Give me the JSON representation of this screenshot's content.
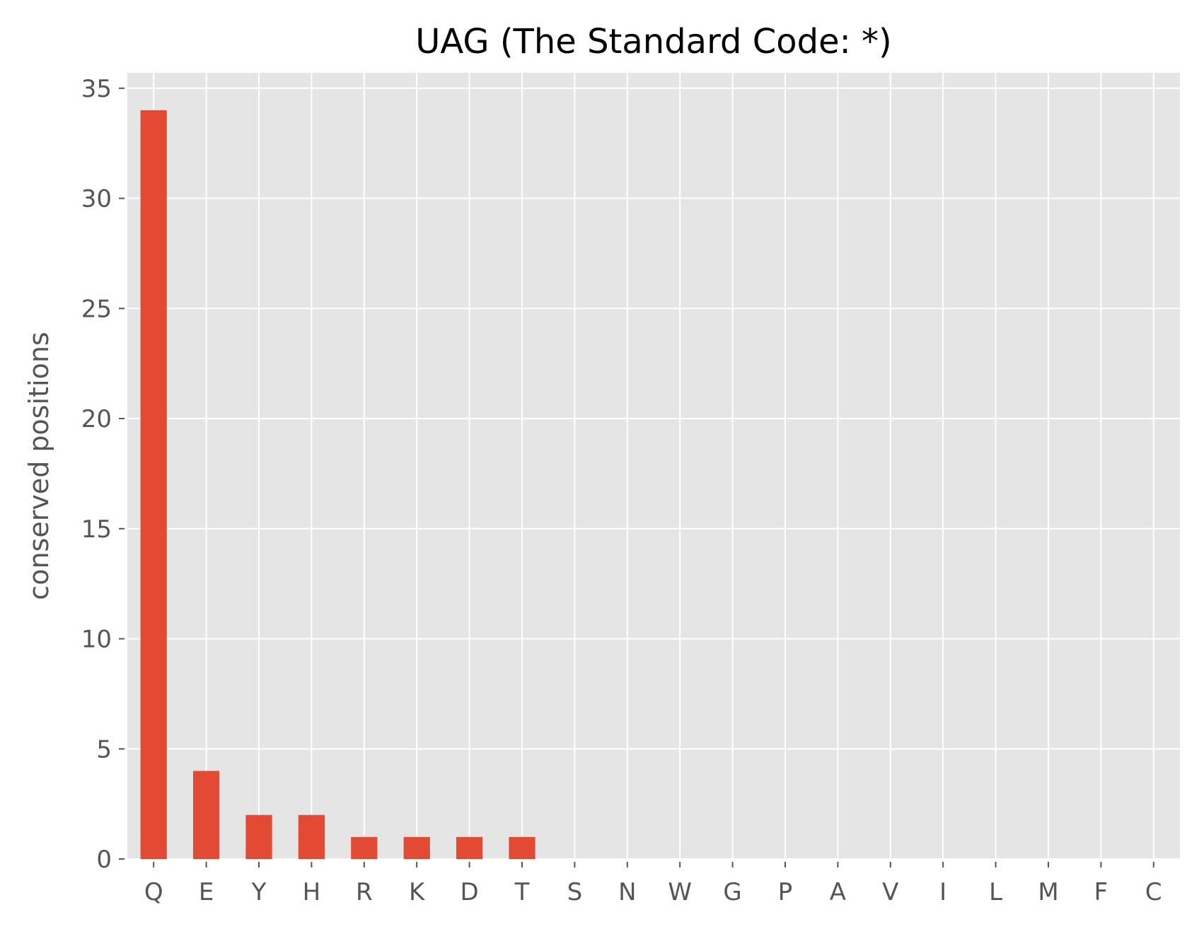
{
  "chart_data": {
    "type": "bar",
    "title": "UAG (The Standard Code: *)",
    "xlabel": "",
    "ylabel": "conserved positions",
    "categories": [
      "Q",
      "E",
      "Y",
      "H",
      "R",
      "K",
      "D",
      "T",
      "S",
      "N",
      "W",
      "G",
      "P",
      "A",
      "V",
      "I",
      "L",
      "M",
      "F",
      "C"
    ],
    "values": [
      34,
      4,
      2,
      2,
      1,
      1,
      1,
      1,
      0,
      0,
      0,
      0,
      0,
      0,
      0,
      0,
      0,
      0,
      0,
      0
    ],
    "yticks": [
      0,
      5,
      10,
      15,
      20,
      25,
      30,
      35
    ],
    "ylim": [
      0,
      35.7
    ],
    "grid": true,
    "legend": "none",
    "colors": {
      "bar": "#E24A33",
      "plot_background": "#E5E5E5",
      "grid": "#FFFFFF",
      "tick_label": "#555555",
      "title": "#000000"
    }
  }
}
